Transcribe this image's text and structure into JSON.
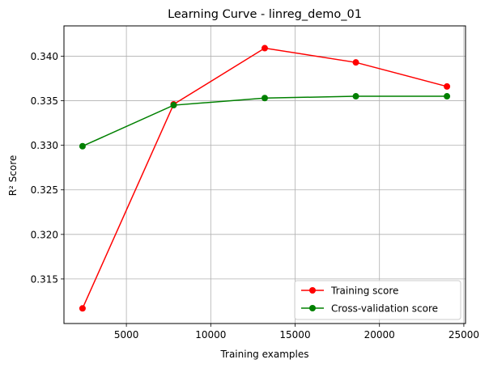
{
  "chart_data": {
    "type": "line",
    "title": "Learning Curve - linreg_demo_01",
    "xlabel": "Training examples",
    "ylabel": "R² Score",
    "xlim": [
      1300,
      25100
    ],
    "ylim": [
      0.31,
      0.3434
    ],
    "xticks": [
      5000,
      10000,
      15000,
      20000,
      25000
    ],
    "xtick_labels": [
      "5000",
      "10000",
      "15000",
      "20000",
      "25000"
    ],
    "yticks": [
      0.315,
      0.32,
      0.325,
      0.33,
      0.335,
      0.34
    ],
    "ytick_labels": [
      "0.315",
      "0.320",
      "0.325",
      "0.330",
      "0.335",
      "0.340"
    ],
    "grid": true,
    "legend_position": "lower-right",
    "x": [
      2400,
      7800,
      13200,
      18600,
      24000
    ],
    "series": [
      {
        "name": "Training score",
        "color": "#ff0000",
        "marker": "circle",
        "values": [
          0.3117,
          0.3346,
          0.3409,
          0.3393,
          0.3366
        ]
      },
      {
        "name": "Cross-validation score",
        "color": "#008000",
        "marker": "circle",
        "values": [
          0.3299,
          0.3345,
          0.3353,
          0.3355,
          0.3355
        ]
      }
    ]
  }
}
